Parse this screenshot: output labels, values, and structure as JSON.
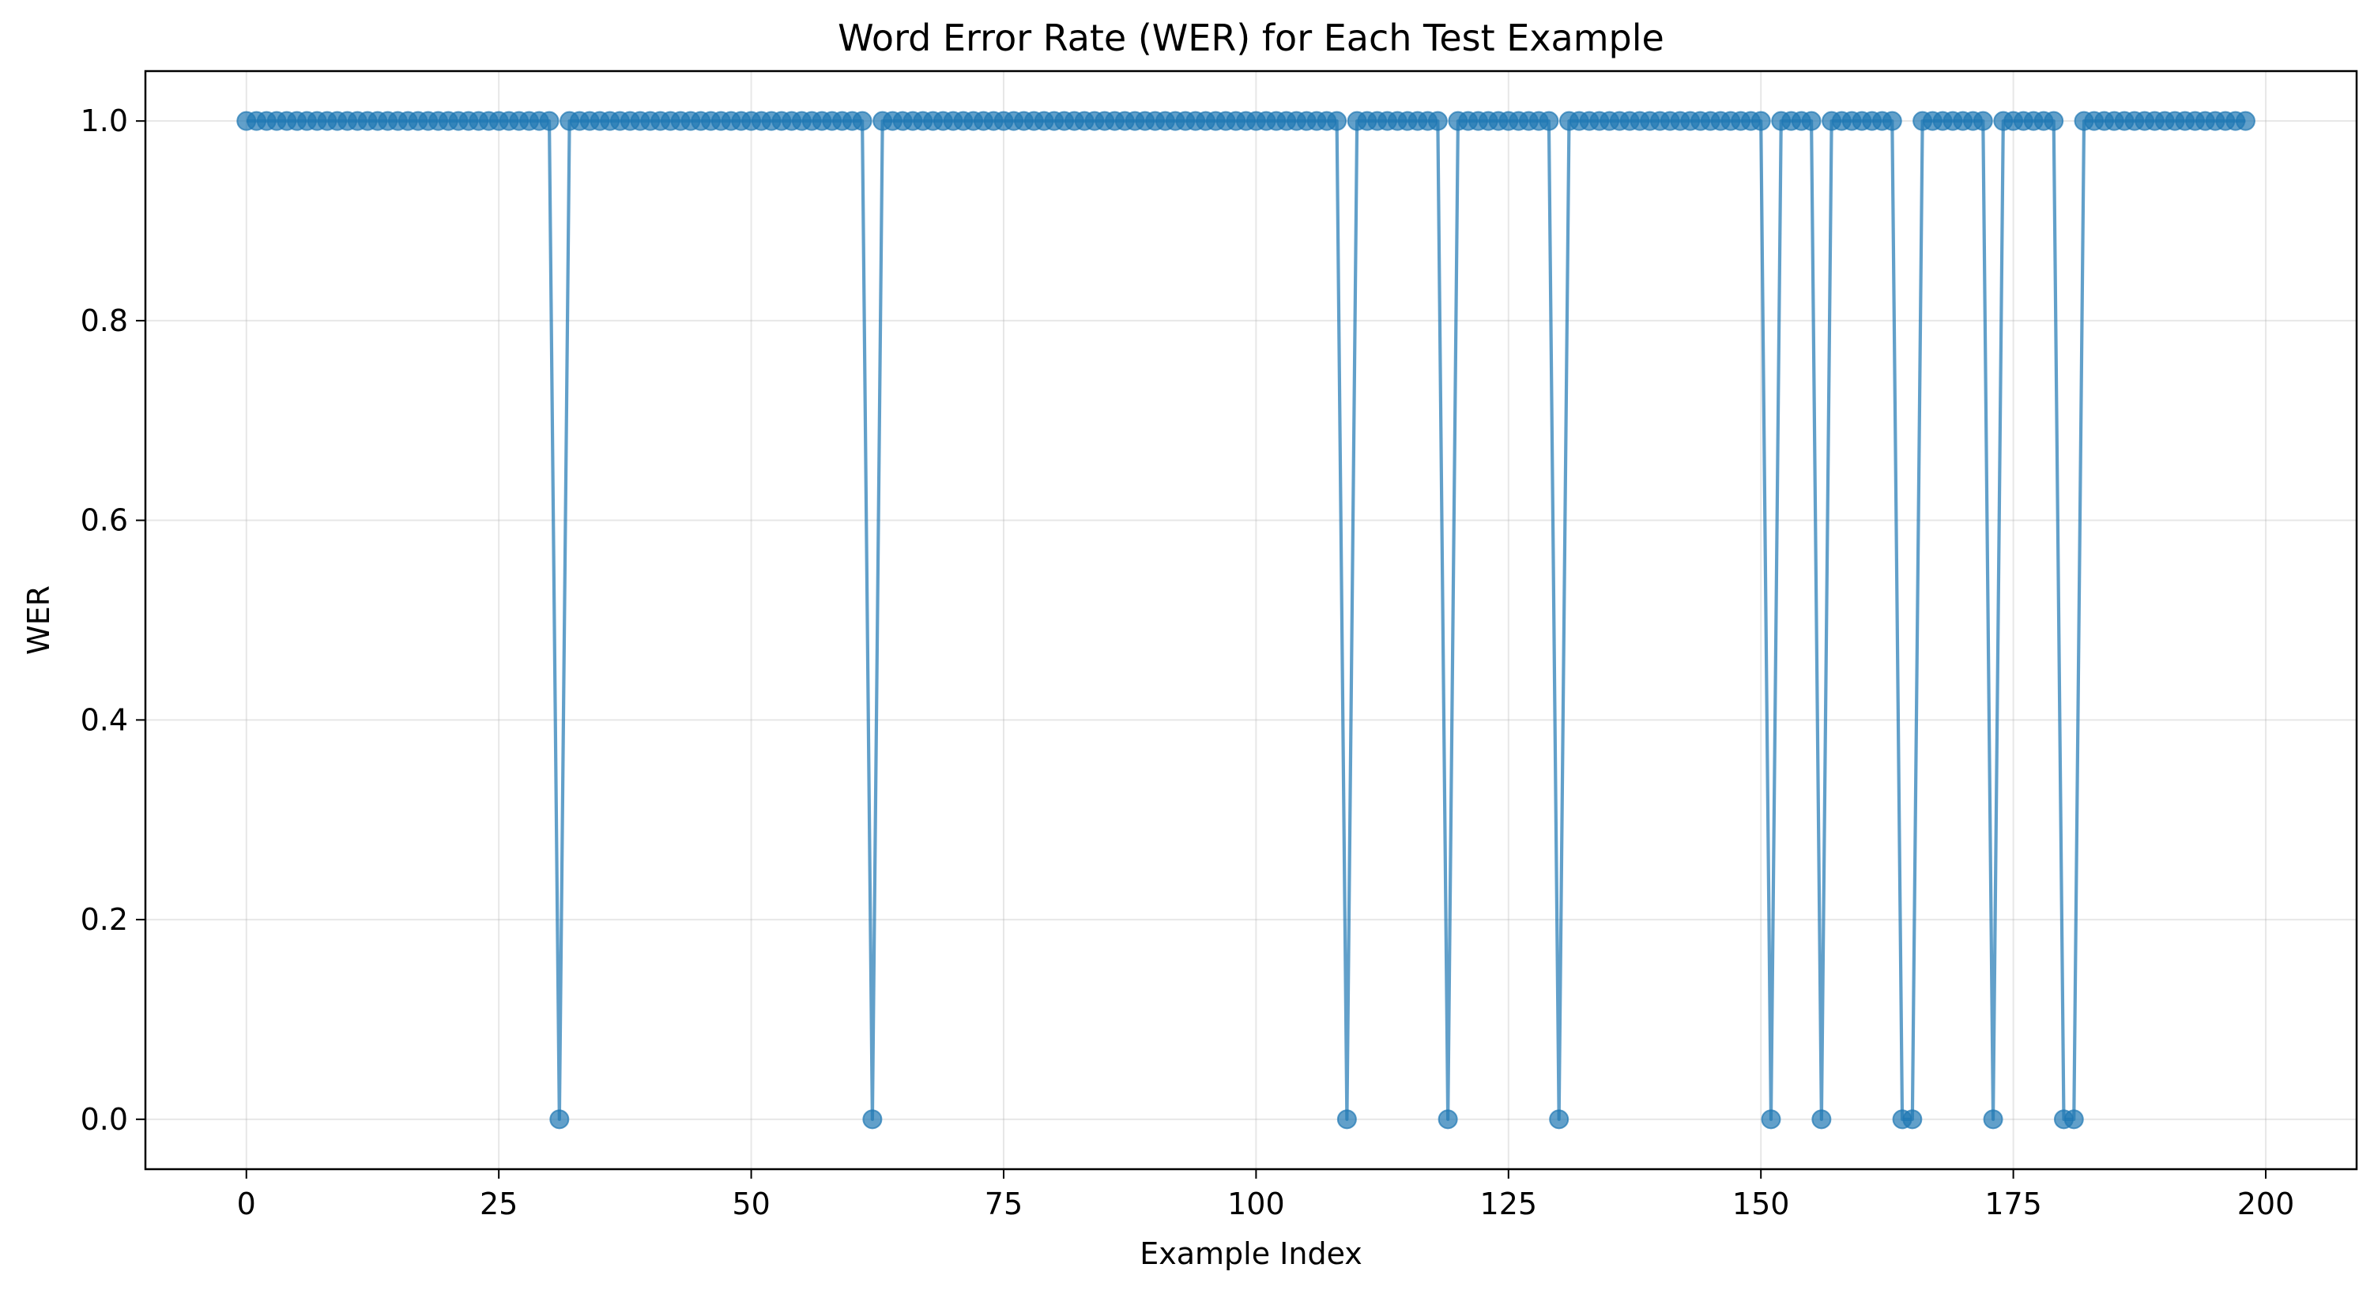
{
  "chart_data": {
    "type": "line",
    "title": "Word Error Rate (WER) for Each Test Example",
    "xlabel": "Example Index",
    "ylabel": "WER",
    "xlim": [
      -10,
      209
    ],
    "ylim": [
      -0.05,
      1.05
    ],
    "x_ticks": [
      0,
      25,
      50,
      75,
      100,
      125,
      150,
      175,
      200
    ],
    "x_tick_labels": [
      "0",
      "25",
      "50",
      "75",
      "100",
      "125",
      "150",
      "175",
      "200"
    ],
    "y_ticks": [
      0.0,
      0.2,
      0.4,
      0.6,
      0.8,
      1.0
    ],
    "y_tick_labels": [
      "0.0",
      "0.2",
      "0.4",
      "0.6",
      "0.8",
      "1.0"
    ],
    "grid": true,
    "legend": "none",
    "series": [
      {
        "color": "#1f77b4",
        "marker": "circle",
        "x": [
          0,
          1,
          2,
          3,
          4,
          5,
          6,
          7,
          8,
          9,
          10,
          11,
          12,
          13,
          14,
          15,
          16,
          17,
          18,
          19,
          20,
          21,
          22,
          23,
          24,
          25,
          26,
          27,
          28,
          29,
          30,
          31,
          32,
          33,
          34,
          35,
          36,
          37,
          38,
          39,
          40,
          41,
          42,
          43,
          44,
          45,
          46,
          47,
          48,
          49,
          50,
          51,
          52,
          53,
          54,
          55,
          56,
          57,
          58,
          59,
          60,
          61,
          62,
          63,
          64,
          65,
          66,
          67,
          68,
          69,
          70,
          71,
          72,
          73,
          74,
          75,
          76,
          77,
          78,
          79,
          80,
          81,
          82,
          83,
          84,
          85,
          86,
          87,
          88,
          89,
          90,
          91,
          92,
          93,
          94,
          95,
          96,
          97,
          98,
          99,
          100,
          101,
          102,
          103,
          104,
          105,
          106,
          107,
          108,
          109,
          110,
          111,
          112,
          113,
          114,
          115,
          116,
          117,
          118,
          119,
          120,
          121,
          122,
          123,
          124,
          125,
          126,
          127,
          128,
          129,
          130,
          131,
          132,
          133,
          134,
          135,
          136,
          137,
          138,
          139,
          140,
          141,
          142,
          143,
          144,
          145,
          146,
          147,
          148,
          149,
          150,
          151,
          152,
          153,
          154,
          155,
          156,
          157,
          158,
          159,
          160,
          161,
          162,
          163,
          164,
          165,
          166,
          167,
          168,
          169,
          170,
          171,
          172,
          173,
          174,
          175,
          176,
          177,
          178,
          179,
          180,
          181,
          182,
          183,
          184,
          185,
          186,
          187,
          188,
          189,
          190,
          191,
          192,
          193,
          194,
          195,
          196,
          197,
          198
        ],
        "y": [
          1,
          1,
          1,
          1,
          1,
          1,
          1,
          1,
          1,
          1,
          1,
          1,
          1,
          1,
          1,
          1,
          1,
          1,
          1,
          1,
          1,
          1,
          1,
          1,
          1,
          1,
          1,
          1,
          1,
          1,
          1,
          0,
          1,
          1,
          1,
          1,
          1,
          1,
          1,
          1,
          1,
          1,
          1,
          1,
          1,
          1,
          1,
          1,
          1,
          1,
          1,
          1,
          1,
          1,
          1,
          1,
          1,
          1,
          1,
          1,
          1,
          1,
          0,
          1,
          1,
          1,
          1,
          1,
          1,
          1,
          1,
          1,
          1,
          1,
          1,
          1,
          1,
          1,
          1,
          1,
          1,
          1,
          1,
          1,
          1,
          1,
          1,
          1,
          1,
          1,
          1,
          1,
          1,
          1,
          1,
          1,
          1,
          1,
          1,
          1,
          1,
          1,
          1,
          1,
          1,
          1,
          1,
          1,
          1,
          0,
          1,
          1,
          1,
          1,
          1,
          1,
          1,
          1,
          1,
          0,
          1,
          1,
          1,
          1,
          1,
          1,
          1,
          1,
          1,
          1,
          0,
          1,
          1,
          1,
          1,
          1,
          1,
          1,
          1,
          1,
          1,
          1,
          1,
          1,
          1,
          1,
          1,
          1,
          1,
          1,
          1,
          0,
          1,
          1,
          1,
          1,
          0,
          1,
          1,
          1,
          1,
          1,
          1,
          1,
          0,
          0,
          1,
          1,
          1,
          1,
          1,
          1,
          1,
          0,
          1,
          1,
          1,
          1,
          1,
          1,
          0,
          0,
          1,
          1,
          1,
          1,
          1,
          1,
          1,
          1,
          1,
          1,
          1,
          1,
          1,
          1,
          1,
          1,
          1
        ]
      }
    ]
  }
}
